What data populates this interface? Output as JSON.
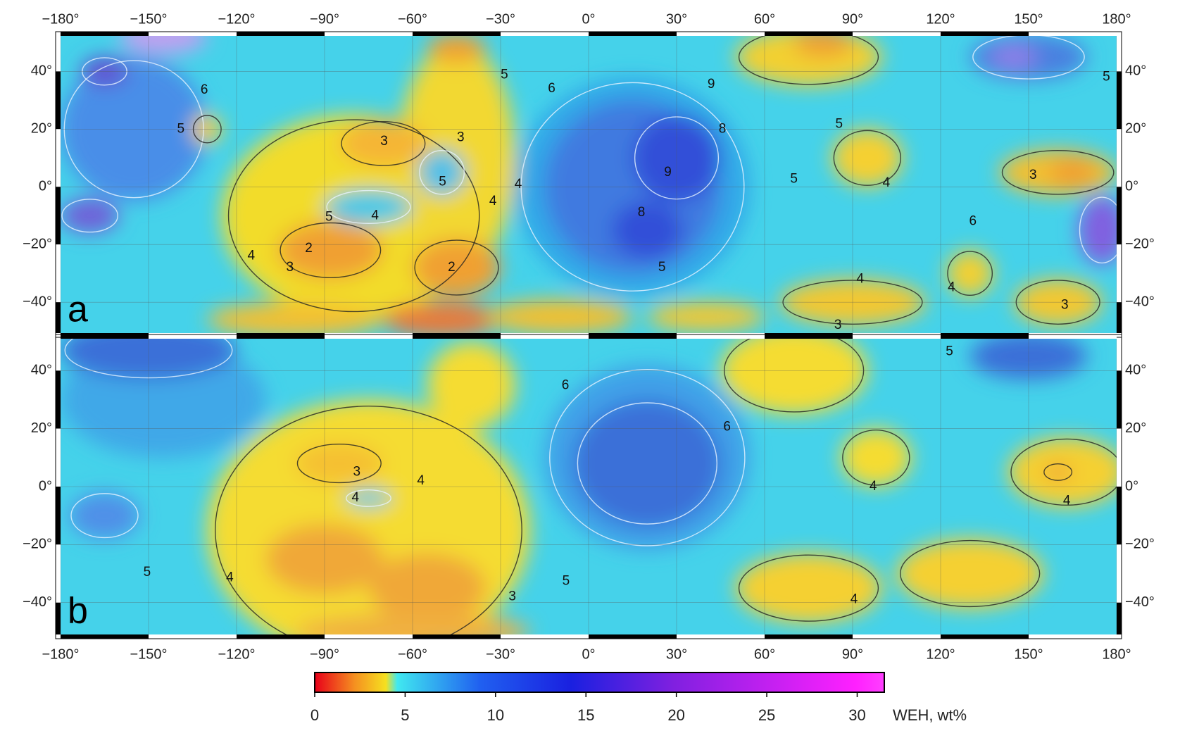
{
  "longitudes": [
    "−180°",
    "−150°",
    "−120°",
    "−90°",
    "−60°",
    "−30°",
    "0°",
    "30°",
    "60°",
    "90°",
    "120°",
    "150°",
    "180°"
  ],
  "latitudes": [
    "40°",
    "20°",
    "0°",
    "−20°",
    "−40°"
  ],
  "panels": [
    {
      "label": "a",
      "contour_labels": [
        "6",
        "5",
        "3",
        "3",
        "5",
        "4",
        "4",
        "5",
        "4",
        "2",
        "3",
        "4",
        "2",
        "5",
        "6",
        "9",
        "8",
        "9",
        "8",
        "5",
        "5",
        "5",
        "4",
        "6",
        "3",
        "4",
        "4",
        "3",
        "3",
        "5"
      ]
    },
    {
      "label": "b",
      "contour_labels": [
        "6",
        "6",
        "3",
        "4",
        "4",
        "4",
        "4",
        "5",
        "5",
        "4",
        "5",
        "3",
        "4"
      ]
    }
  ],
  "colorbar": {
    "range": [
      0,
      31.5
    ],
    "ticks": [
      0,
      5,
      10,
      15,
      20,
      25,
      30
    ],
    "label": "WEH, wt%"
  }
}
